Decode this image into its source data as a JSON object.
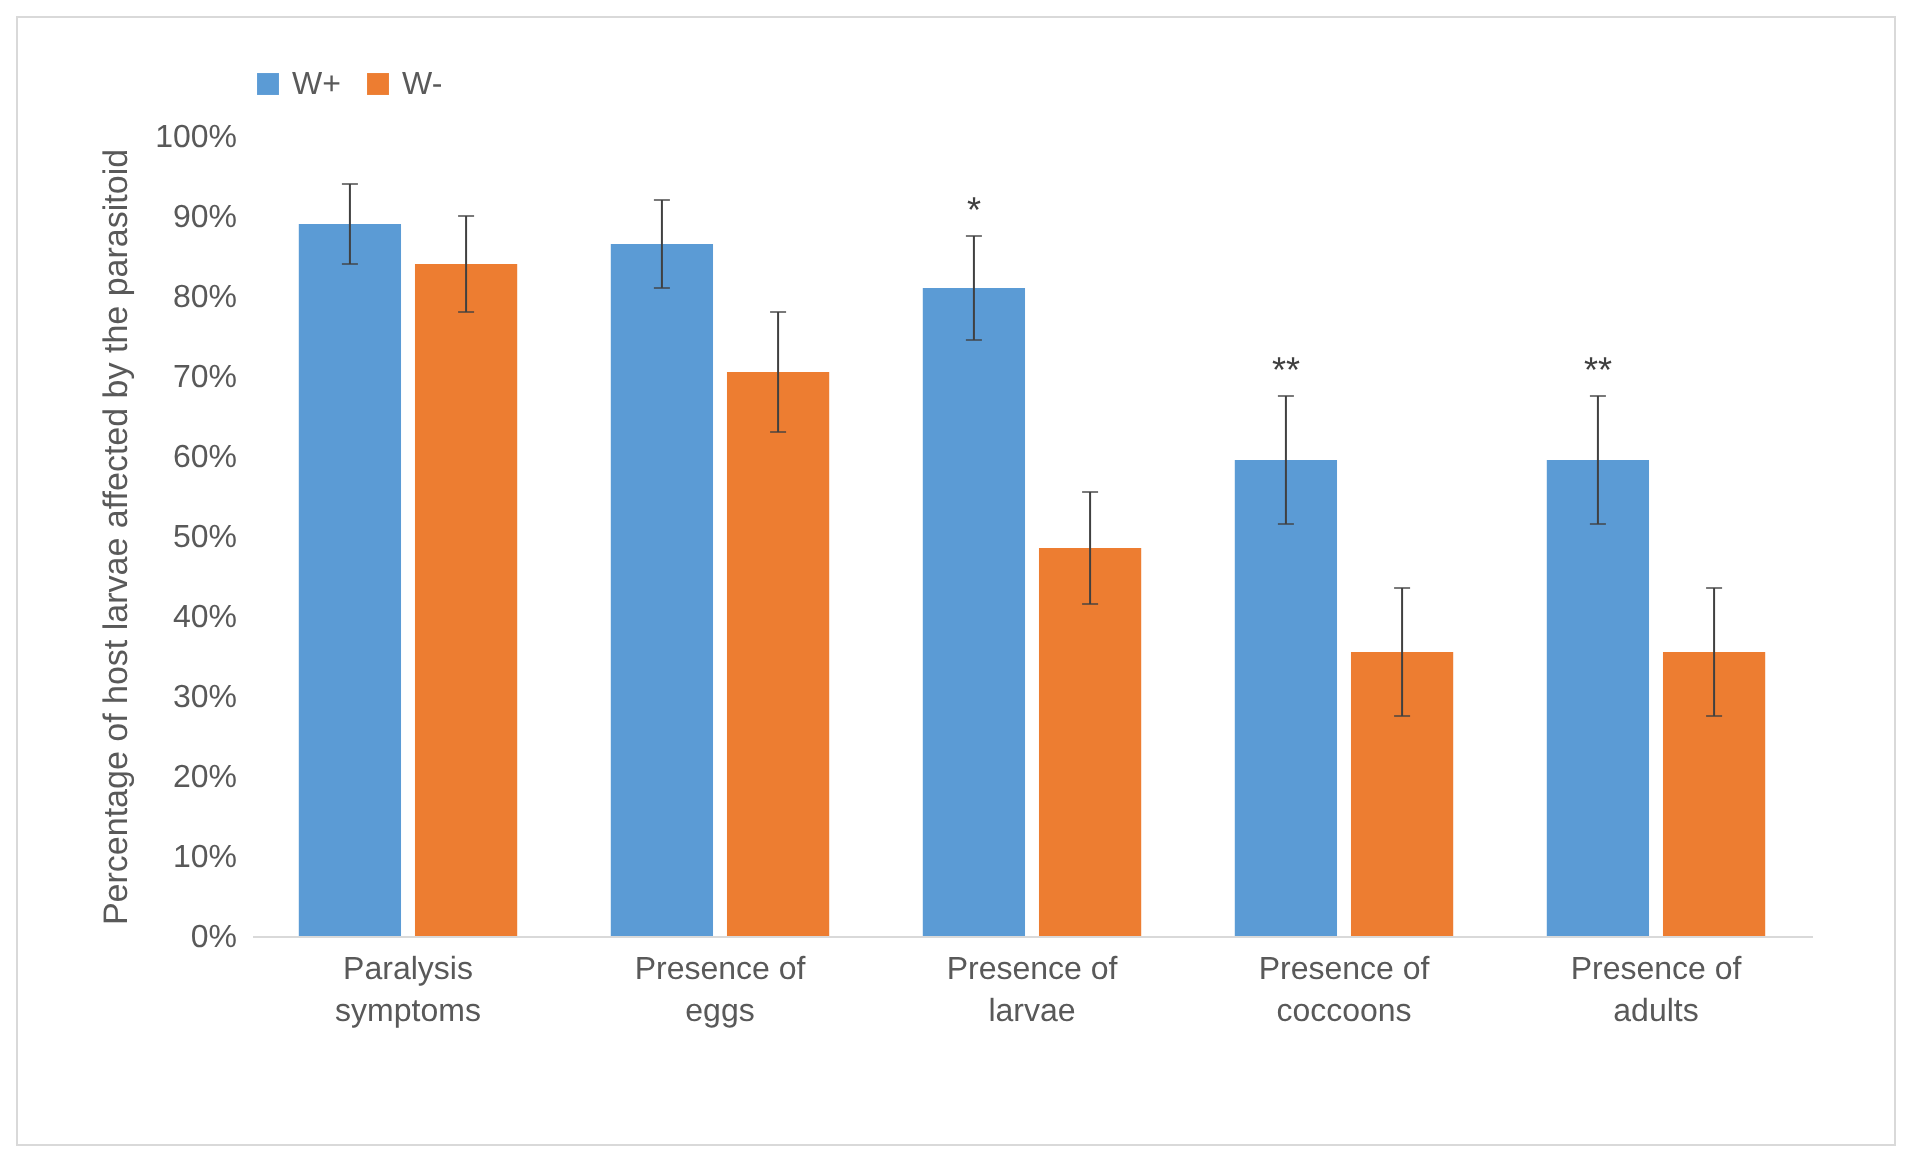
{
  "chart_data": {
    "type": "bar",
    "ylabel": "Percentage of host larvae affected by the parasitoid",
    "categories": [
      "Paralysis symptoms",
      "Presence of eggs",
      "Presence of larvae",
      "Presence of coccoons",
      "Presence of adults"
    ],
    "series": [
      {
        "name": "W+",
        "color": "#5b9bd5",
        "values": [
          89,
          86.5,
          81,
          59.5,
          59.5
        ],
        "errors": [
          5,
          5.5,
          6.5,
          8,
          8
        ]
      },
      {
        "name": "W-",
        "color": "#ed7d31",
        "values": [
          84,
          70.5,
          48.5,
          35.5,
          35.5
        ],
        "errors": [
          6,
          7.5,
          7,
          8,
          8
        ]
      }
    ],
    "ylim": [
      0,
      100
    ],
    "yticks": [
      {
        "value": 0,
        "label": "0%"
      },
      {
        "value": 10,
        "label": "10%"
      },
      {
        "value": 20,
        "label": "20%"
      },
      {
        "value": 30,
        "label": "30%"
      },
      {
        "value": 40,
        "label": "40%"
      },
      {
        "value": 50,
        "label": "50%"
      },
      {
        "value": 60,
        "label": "60%"
      },
      {
        "value": 70,
        "label": "70%"
      },
      {
        "value": 80,
        "label": "80%"
      },
      {
        "value": 90,
        "label": "90%"
      },
      {
        "value": 100,
        "label": "100%"
      }
    ],
    "annotations": [
      {
        "text": "*",
        "x": "Presence of larvae",
        "y": 81
      },
      {
        "text": "**",
        "x": "Presence of coccoons",
        "y": 59.5
      },
      {
        "text": "**",
        "x": "Presence of adults",
        "y": 59.5
      }
    ],
    "legend": "top",
    "grid": false
  }
}
